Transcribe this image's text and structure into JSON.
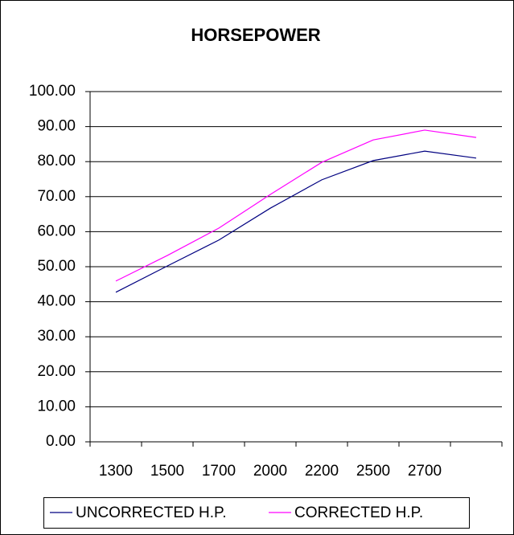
{
  "chart_data": {
    "type": "line",
    "title": "HORSEPOWER",
    "categories": [
      "1300",
      "1500",
      "1700",
      "2000",
      "2200",
      "2500",
      "2700",
      null
    ],
    "series": [
      {
        "name": "UNCORRECTED H.P.",
        "color": "#000080",
        "values": [
          42.7,
          50.2,
          57.6,
          66.7,
          74.8,
          80.3,
          83.0,
          81.0
        ]
      },
      {
        "name": "CORRECTED H.P.",
        "color": "#ff00ff",
        "values": [
          45.9,
          53.2,
          61.0,
          70.6,
          79.8,
          86.2,
          89.0,
          86.9
        ]
      }
    ],
    "ylim": [
      0,
      100
    ],
    "yticks": [
      {
        "value": 0,
        "label": "0.00"
      },
      {
        "value": 10,
        "label": "10.00"
      },
      {
        "value": 20,
        "label": "20.00"
      },
      {
        "value": 30,
        "label": "30.00"
      },
      {
        "value": 40,
        "label": "40.00"
      },
      {
        "value": 50,
        "label": "50.00"
      },
      {
        "value": 60,
        "label": "60.00"
      },
      {
        "value": 70,
        "label": "70.00"
      },
      {
        "value": 80,
        "label": "80.00"
      },
      {
        "value": 90,
        "label": "90.00"
      },
      {
        "value": 100,
        "label": "100.00"
      }
    ],
    "grid": true,
    "legend": "bottom"
  }
}
